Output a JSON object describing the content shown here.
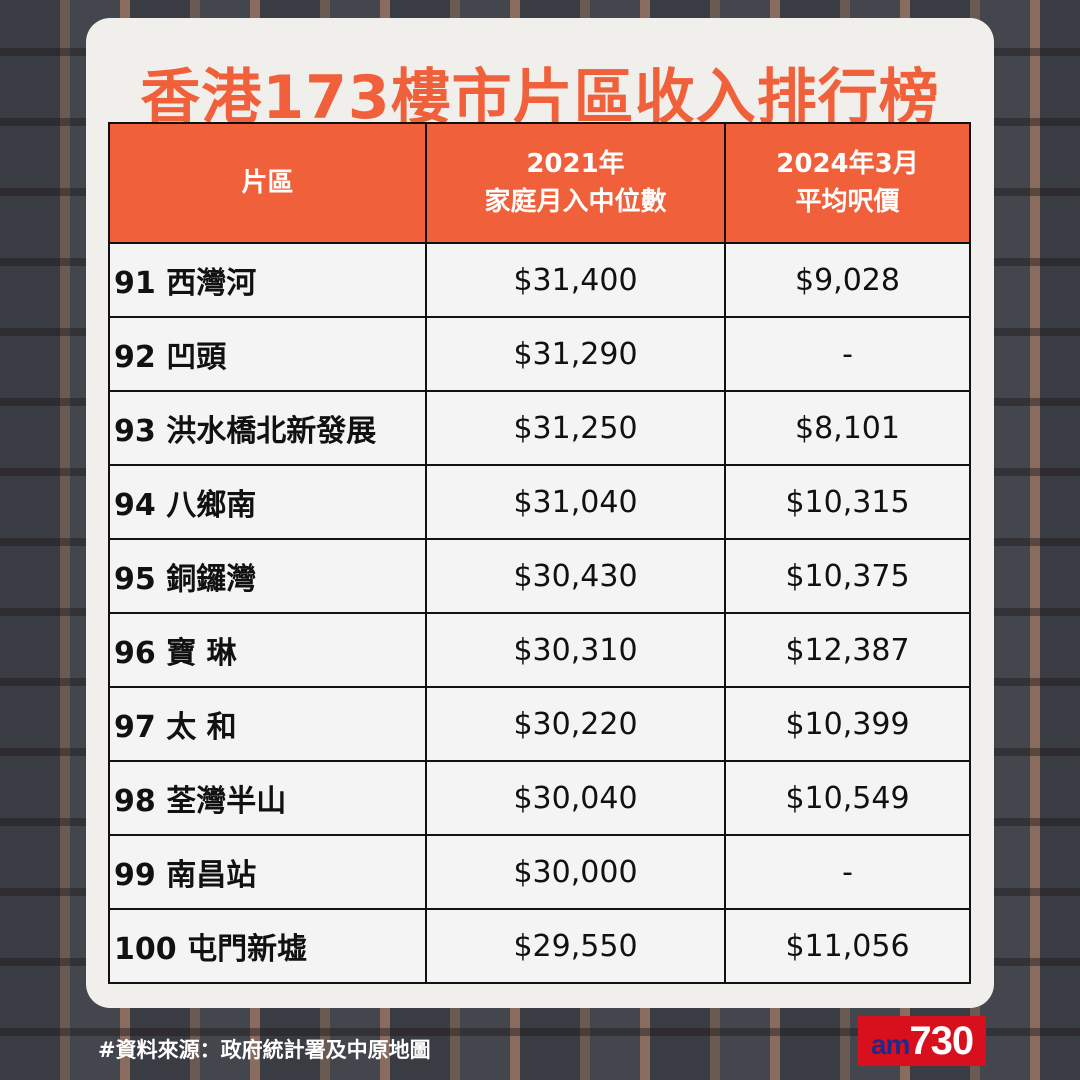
{
  "title": "香港173樓市片區收入排行榜",
  "table": {
    "headers": [
      {
        "line1": "片區",
        "line2": ""
      },
      {
        "line1": "2021年",
        "line2": "家庭月入中位數"
      },
      {
        "line1": "2024年3月",
        "line2": "平均呎價"
      }
    ],
    "rows": [
      {
        "area": "91 西灣河",
        "income": "$31,400",
        "price": "$9,028"
      },
      {
        "area": "92 凹頭",
        "income": "$31,290",
        "price": "-"
      },
      {
        "area": "93 洪水橋北新發展",
        "income": "$31,250",
        "price": "$8,101"
      },
      {
        "area": "94 八鄉南",
        "income": "$31,040",
        "price": "$10,315"
      },
      {
        "area": "95 銅鑼灣",
        "income": "$30,430",
        "price": "$10,375"
      },
      {
        "area": "96 寶 琳",
        "income": "$30,310",
        "price": "$12,387"
      },
      {
        "area": "97 太 和",
        "income": "$30,220",
        "price": "$10,399"
      },
      {
        "area": "98 荃灣半山",
        "income": "$30,040",
        "price": "$10,549"
      },
      {
        "area": "99 南昌站",
        "income": "$30,000",
        "price": "-"
      },
      {
        "area": "100 屯門新墟",
        "income": "$29,550",
        "price": "$11,056"
      }
    ]
  },
  "source": "#資料來源：政府統計署及中原地圖",
  "logo": {
    "prefix": "am",
    "number": "730"
  },
  "colors": {
    "accent": "#f0603a",
    "card": "#f1efec",
    "logo": "#d8101e"
  }
}
